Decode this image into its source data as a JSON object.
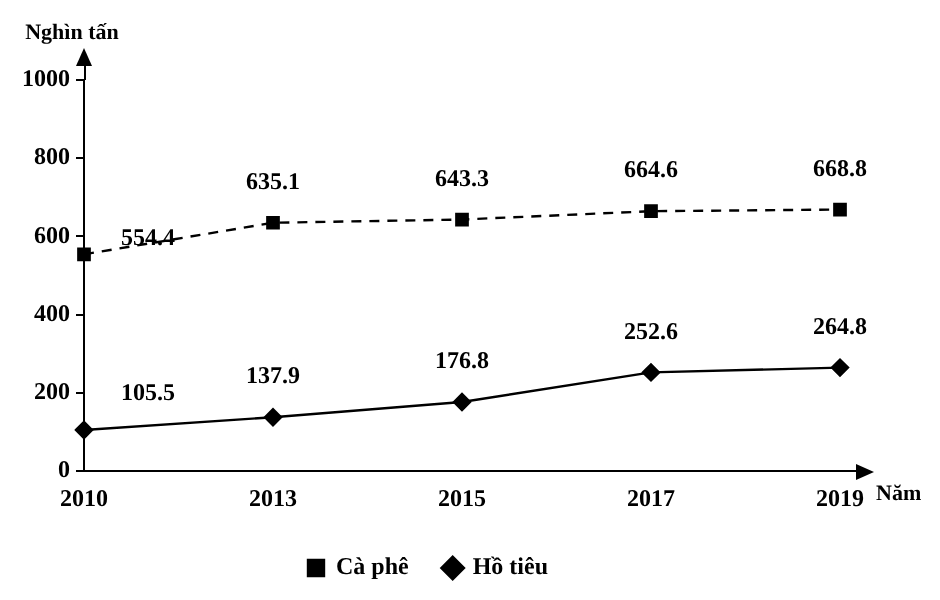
{
  "chart_data": {
    "type": "line",
    "xlabel": "Năm",
    "ylabel": "Nghìn tấn",
    "categories": [
      "2010",
      "2013",
      "2015",
      "2017",
      "2019"
    ],
    "series": [
      {
        "name": "Cà phê",
        "color": "#000000",
        "values": [
          554.4,
          635.1,
          643.3,
          664.6,
          668.8
        ],
        "marker": "square",
        "line_style": "dashed"
      },
      {
        "name": "Hồ tiêu",
        "color": "#000000",
        "values": [
          105.5,
          137.9,
          176.8,
          252.6,
          264.8
        ],
        "marker": "diamond",
        "line_style": "solid"
      }
    ],
    "ylim": [
      0,
      1000
    ],
    "yticks": [
      0,
      200,
      400,
      600,
      800,
      1000
    ],
    "grid": false,
    "legend": "bottom",
    "data_labels": true
  }
}
